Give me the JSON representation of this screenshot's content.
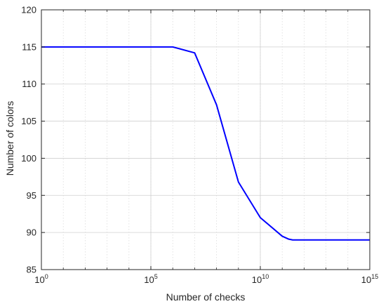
{
  "chart_data": {
    "type": "line",
    "xlabel": "Number of checks",
    "ylabel": "Number of colors",
    "xscale": "log",
    "xlim": [
      1,
      1000000000000000.0
    ],
    "ylim": [
      85,
      120
    ],
    "xticks": [
      {
        "value": 1,
        "base": "10",
        "exp": "0"
      },
      {
        "value": 100000,
        "base": "10",
        "exp": "5"
      },
      {
        "value": 10000000000,
        "base": "10",
        "exp": "10"
      },
      {
        "value": 1000000000000000.0,
        "base": "10",
        "exp": "15"
      }
    ],
    "yticks": [
      85,
      90,
      95,
      100,
      105,
      110,
      115,
      120
    ],
    "grid": true,
    "line_color": "#0000ff",
    "series": [
      {
        "x": [
          1,
          100000,
          1000000,
          10000000,
          100000000,
          1000000000,
          10000000000,
          100000000000,
          200000000000,
          300000000000,
          10000000000000.0,
          100000000000000.0,
          1000000000000000.0
        ],
        "y": [
          115,
          115,
          115,
          114.2,
          107.2,
          96.8,
          92,
          89.5,
          89.1,
          89,
          89,
          89,
          89
        ]
      }
    ]
  }
}
